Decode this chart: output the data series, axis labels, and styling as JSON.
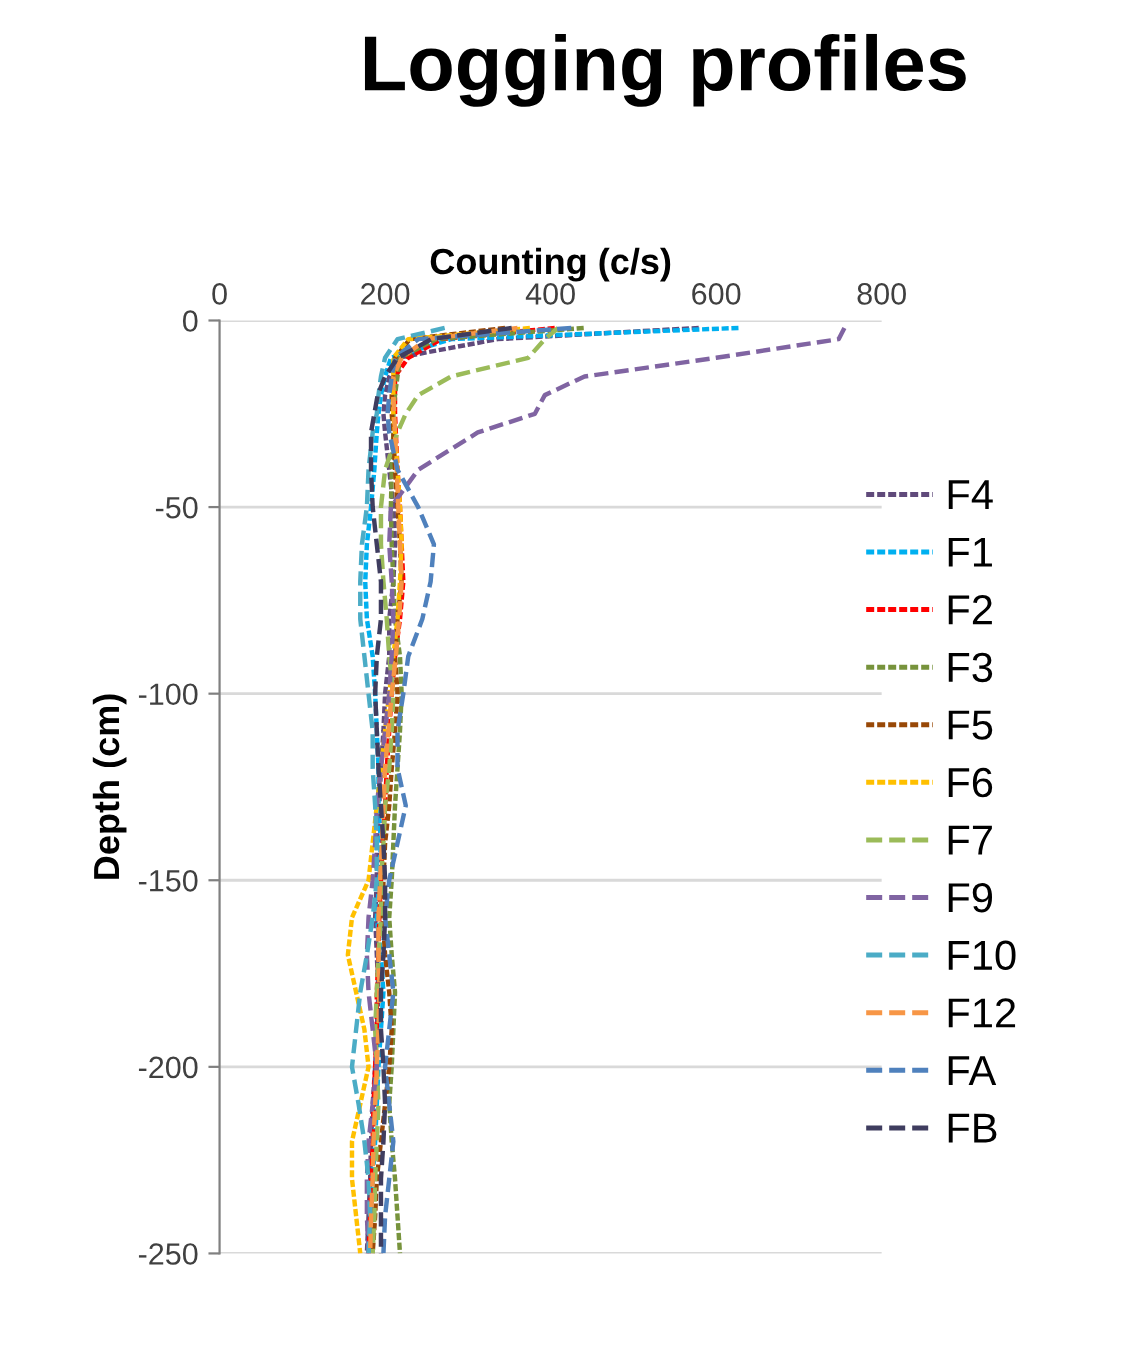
{
  "chart_data": {
    "type": "line",
    "orientation": "horizontal",
    "title": "Logging profiles",
    "xlabel": "Counting (c/s)",
    "ylabel": "Depth (cm)",
    "x": [
      -2,
      -5,
      -10,
      -15,
      -20,
      -25,
      -30,
      -40,
      -50,
      -60,
      -70,
      -80,
      -90,
      -100,
      -110,
      -120,
      -130,
      -140,
      -150,
      -160,
      -170,
      -180,
      -190,
      -200,
      -210,
      -220,
      -230,
      -240,
      -250
    ],
    "xlim": [
      0,
      800
    ],
    "xticks": [
      0,
      200,
      400,
      600,
      800
    ],
    "ylim": [
      -250,
      0
    ],
    "yticks": [
      -250,
      -200,
      -150,
      -100,
      -50,
      0
    ],
    "grid": "y",
    "legend": "right",
    "series": [
      {
        "name": "F4",
        "color": "#604a7b",
        "line_style": "dotted",
        "values": [
          579,
          336,
          215,
          205,
          200,
          198,
          200,
          205,
          210,
          212,
          210,
          205,
          205,
          200,
          198,
          195,
          193,
          190,
          190,
          188,
          190,
          192,
          190,
          188,
          185,
          183,
          182,
          180,
          178
        ]
      },
      {
        "name": "F1",
        "color": "#00b0f0",
        "line_style": "dotted",
        "values": [
          627,
          280,
          207,
          200,
          195,
          192,
          190,
          187,
          183,
          178,
          176,
          178,
          185,
          188,
          190,
          192,
          192,
          195,
          193,
          190,
          195,
          198,
          195,
          192,
          190,
          188,
          185,
          183,
          182
        ]
      },
      {
        "name": "F2",
        "color": "#ff0000",
        "line_style": "dotted",
        "values": [
          405,
          268,
          228,
          212,
          212,
          212,
          213,
          215,
          218,
          220,
          222,
          218,
          212,
          208,
          205,
          202,
          200,
          197,
          195,
          193,
          192,
          190,
          190,
          188,
          186,
          185,
          183,
          182,
          180
        ]
      },
      {
        "name": "F3",
        "color": "#77933c",
        "line_style": "dotted",
        "values": [
          440,
          262,
          218,
          215,
          212,
          210,
          210,
          208,
          207,
          208,
          210,
          212,
          218,
          220,
          218,
          215,
          212,
          210,
          208,
          205,
          208,
          212,
          210,
          208,
          205,
          208,
          212,
          215,
          218
        ]
      },
      {
        "name": "F5",
        "color": "#984807",
        "line_style": "dotted",
        "values": [
          345,
          230,
          212,
          210,
          208,
          208,
          210,
          212,
          215,
          218,
          220,
          215,
          212,
          215,
          212,
          208,
          205,
          200,
          198,
          197,
          200,
          205,
          208,
          205,
          200,
          195,
          190,
          188,
          185
        ]
      },
      {
        "name": "F6",
        "color": "#ffc000",
        "line_style": "dotted",
        "values": [
          375,
          228,
          210,
          210,
          210,
          210,
          212,
          215,
          218,
          220,
          218,
          215,
          210,
          205,
          200,
          195,
          190,
          185,
          180,
          160,
          155,
          165,
          175,
          180,
          170,
          160,
          160,
          165,
          170
        ]
      },
      {
        "name": "F7",
        "color": "#9bbb59",
        "line_style": "dashed",
        "values": [
          409,
          393,
          373,
          280,
          240,
          225,
          215,
          200,
          195,
          195,
          198,
          202,
          205,
          210,
          208,
          205,
          200,
          198,
          195,
          195,
          192,
          190,
          188,
          190,
          192,
          190,
          188,
          187,
          185
        ]
      },
      {
        "name": "F9",
        "color": "#8064a2",
        "line_style": "dashed",
        "values": [
          755,
          748,
          600,
          441,
          393,
          381,
          312,
          240,
          207,
          205,
          208,
          210,
          208,
          205,
          200,
          195,
          190,
          188,
          185,
          180,
          178,
          180,
          185,
          190,
          185,
          180,
          178,
          178,
          180
        ]
      },
      {
        "name": "F10",
        "color": "#4bacc6",
        "line_style": "dashed",
        "values": [
          272,
          215,
          200,
          195,
          192,
          190,
          185,
          180,
          178,
          172,
          170,
          170,
          175,
          180,
          185,
          185,
          188,
          190,
          190,
          185,
          178,
          170,
          165,
          160,
          168,
          175,
          180,
          182,
          180
        ]
      },
      {
        "name": "F12",
        "color": "#f79646",
        "line_style": "dashed",
        "values": [
          360,
          250,
          220,
          210,
          210,
          211,
          212,
          214,
          216,
          218,
          220,
          217,
          213,
          208,
          204,
          200,
          198,
          196,
          194,
          192,
          192,
          193,
          192,
          190,
          188,
          186,
          185,
          183,
          182
        ]
      },
      {
        "name": "FA",
        "color": "#4f81bd",
        "line_style": "dashed",
        "values": [
          425,
          240,
          212,
          208,
          205,
          203,
          205,
          215,
          240,
          259,
          255,
          245,
          228,
          222,
          215,
          215,
          225,
          215,
          205,
          200,
          205,
          210,
          205,
          200,
          205,
          210,
          205,
          200,
          198
        ]
      },
      {
        "name": "FB",
        "color": "#3f3d5f",
        "line_style": "dashed",
        "values": [
          353,
          256,
          215,
          200,
          191,
          187,
          183,
          183,
          185,
          190,
          195,
          195,
          190,
          188,
          190,
          192,
          195,
          198,
          200,
          200,
          198,
          195,
          195,
          198,
          200,
          198,
          195,
          195,
          195
        ]
      }
    ]
  }
}
